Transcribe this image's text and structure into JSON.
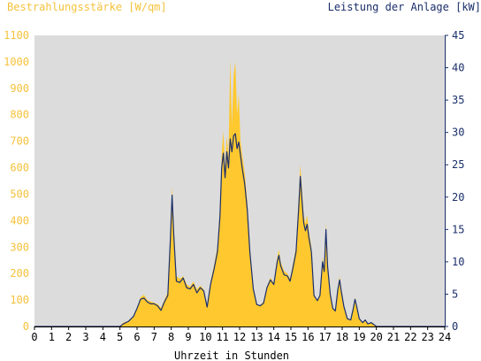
{
  "colors": {
    "plot_bg": "#dcdcdc",
    "irradiance_fill": "#ffc82e",
    "power_line": "#1a2f6b",
    "left_axis_text": "#f5c23c",
    "right_axis_text": "#1a2f6b",
    "right_axis_line": "#1a2f6b",
    "bottom_axis_line": "#000000"
  },
  "chart_data": {
    "type": "area",
    "title": "",
    "ylabel_left": "Bestrahlungsstärke [W/qm]",
    "ylabel_right": "Leistung der Anlage [kW]",
    "xlabel": "Uhrzeit in Stunden",
    "xlim": [
      0,
      24
    ],
    "ylim_left": [
      0,
      1100
    ],
    "ylim_right": [
      0,
      45
    ],
    "x_ticks": [
      "0",
      "1",
      "2",
      "3",
      "4",
      "5",
      "6",
      "7",
      "8",
      "9",
      "10",
      "11",
      "12",
      "13",
      "14",
      "15",
      "16",
      "17",
      "18",
      "19",
      "20",
      "21",
      "22",
      "23",
      "24"
    ],
    "y_ticks_left": [
      "0",
      "100",
      "200",
      "300",
      "400",
      "500",
      "600",
      "700",
      "800",
      "900",
      "1000",
      "1100"
    ],
    "y_ticks_right": [
      "0",
      "5",
      "10",
      "15",
      "20",
      "25",
      "30",
      "35",
      "40",
      "45"
    ],
    "grid": false,
    "series": [
      {
        "name": "Bestrahlungsstärke [W/qm]",
        "axis": "left",
        "style": "filled-area",
        "points": [
          [
            0,
            0
          ],
          [
            5.0,
            0
          ],
          [
            5.2,
            15
          ],
          [
            5.5,
            20
          ],
          [
            5.8,
            40
          ],
          [
            6.0,
            70
          ],
          [
            6.2,
            110
          ],
          [
            6.4,
            120
          ],
          [
            6.6,
            100
          ],
          [
            6.8,
            95
          ],
          [
            7.0,
            90
          ],
          [
            7.2,
            85
          ],
          [
            7.4,
            70
          ],
          [
            7.6,
            100
          ],
          [
            7.8,
            130
          ],
          [
            7.95,
            350
          ],
          [
            8.05,
            530
          ],
          [
            8.15,
            380
          ],
          [
            8.3,
            190
          ],
          [
            8.5,
            180
          ],
          [
            8.7,
            190
          ],
          [
            8.9,
            160
          ],
          [
            9.1,
            150
          ],
          [
            9.3,
            170
          ],
          [
            9.5,
            140
          ],
          [
            9.7,
            155
          ],
          [
            9.9,
            140
          ],
          [
            10.1,
            75
          ],
          [
            10.3,
            170
          ],
          [
            10.5,
            230
          ],
          [
            10.7,
            300
          ],
          [
            10.85,
            450
          ],
          [
            10.95,
            650
          ],
          [
            11.05,
            740
          ],
          [
            11.15,
            600
          ],
          [
            11.25,
            720
          ],
          [
            11.35,
            640
          ],
          [
            11.45,
            1010
          ],
          [
            11.55,
            760
          ],
          [
            11.65,
            950
          ],
          [
            11.75,
            1000
          ],
          [
            11.85,
            800
          ],
          [
            11.95,
            880
          ],
          [
            12.05,
            700
          ],
          [
            12.15,
            650
          ],
          [
            12.3,
            580
          ],
          [
            12.45,
            470
          ],
          [
            12.6,
            300
          ],
          [
            12.8,
            150
          ],
          [
            13.0,
            85
          ],
          [
            13.2,
            80
          ],
          [
            13.4,
            95
          ],
          [
            13.6,
            150
          ],
          [
            13.8,
            185
          ],
          [
            14.0,
            165
          ],
          [
            14.2,
            260
          ],
          [
            14.3,
            290
          ],
          [
            14.4,
            245
          ],
          [
            14.6,
            210
          ],
          [
            14.8,
            200
          ],
          [
            14.95,
            180
          ],
          [
            15.1,
            230
          ],
          [
            15.3,
            300
          ],
          [
            15.45,
            480
          ],
          [
            15.55,
            610
          ],
          [
            15.65,
            520
          ],
          [
            15.75,
            420
          ],
          [
            15.85,
            390
          ],
          [
            15.95,
            420
          ],
          [
            16.05,
            360
          ],
          [
            16.2,
            300
          ],
          [
            16.35,
            120
          ],
          [
            16.55,
            100
          ],
          [
            16.7,
            120
          ],
          [
            16.85,
            260
          ],
          [
            16.95,
            220
          ],
          [
            17.05,
            390
          ],
          [
            17.15,
            240
          ],
          [
            17.3,
            130
          ],
          [
            17.45,
            70
          ],
          [
            17.6,
            60
          ],
          [
            17.75,
            150
          ],
          [
            17.85,
            190
          ],
          [
            17.95,
            140
          ],
          [
            18.1,
            80
          ],
          [
            18.3,
            30
          ],
          [
            18.5,
            25
          ],
          [
            18.65,
            70
          ],
          [
            18.75,
            110
          ],
          [
            18.85,
            80
          ],
          [
            19.0,
            30
          ],
          [
            19.2,
            15
          ],
          [
            19.35,
            25
          ],
          [
            19.5,
            10
          ],
          [
            19.7,
            15
          ],
          [
            19.9,
            5
          ],
          [
            20.0,
            0
          ],
          [
            24,
            0
          ]
        ]
      },
      {
        "name": "Leistung der Anlage [kW]",
        "axis": "right",
        "style": "line",
        "points": [
          [
            0,
            0
          ],
          [
            5.0,
            0
          ],
          [
            5.2,
            0.4
          ],
          [
            5.5,
            0.8
          ],
          [
            5.8,
            1.6
          ],
          [
            6.0,
            2.8
          ],
          [
            6.2,
            4.2
          ],
          [
            6.4,
            4.4
          ],
          [
            6.6,
            3.8
          ],
          [
            6.8,
            3.5
          ],
          [
            7.0,
            3.5
          ],
          [
            7.2,
            3.2
          ],
          [
            7.4,
            2.5
          ],
          [
            7.6,
            3.8
          ],
          [
            7.8,
            4.8
          ],
          [
            7.95,
            13.5
          ],
          [
            8.05,
            20.3
          ],
          [
            8.15,
            14.0
          ],
          [
            8.3,
            7.0
          ],
          [
            8.5,
            6.8
          ],
          [
            8.7,
            7.5
          ],
          [
            8.9,
            6.0
          ],
          [
            9.1,
            5.8
          ],
          [
            9.3,
            6.5
          ],
          [
            9.5,
            5.2
          ],
          [
            9.7,
            6.0
          ],
          [
            9.9,
            5.5
          ],
          [
            10.1,
            3.0
          ],
          [
            10.3,
            6.5
          ],
          [
            10.5,
            8.8
          ],
          [
            10.7,
            11.5
          ],
          [
            10.85,
            17.0
          ],
          [
            10.95,
            24.5
          ],
          [
            11.05,
            26.8
          ],
          [
            11.15,
            23.0
          ],
          [
            11.25,
            27.0
          ],
          [
            11.35,
            24.5
          ],
          [
            11.45,
            29.0
          ],
          [
            11.55,
            27.0
          ],
          [
            11.65,
            29.5
          ],
          [
            11.75,
            29.8
          ],
          [
            11.85,
            27.5
          ],
          [
            11.95,
            28.5
          ],
          [
            12.05,
            26.5
          ],
          [
            12.15,
            24.5
          ],
          [
            12.3,
            22.0
          ],
          [
            12.45,
            18.0
          ],
          [
            12.6,
            11.5
          ],
          [
            12.8,
            5.8
          ],
          [
            13.0,
            3.4
          ],
          [
            13.2,
            3.2
          ],
          [
            13.4,
            3.6
          ],
          [
            13.6,
            6.0
          ],
          [
            13.8,
            7.2
          ],
          [
            14.0,
            6.5
          ],
          [
            14.2,
            10.0
          ],
          [
            14.3,
            11.0
          ],
          [
            14.4,
            9.4
          ],
          [
            14.6,
            8.0
          ],
          [
            14.8,
            7.8
          ],
          [
            14.95,
            7.0
          ],
          [
            15.1,
            8.8
          ],
          [
            15.3,
            11.5
          ],
          [
            15.45,
            18.0
          ],
          [
            15.55,
            23.2
          ],
          [
            15.65,
            19.5
          ],
          [
            15.75,
            16.0
          ],
          [
            15.85,
            14.8
          ],
          [
            15.95,
            15.8
          ],
          [
            16.05,
            13.8
          ],
          [
            16.2,
            11.5
          ],
          [
            16.35,
            4.8
          ],
          [
            16.55,
            4.0
          ],
          [
            16.7,
            4.8
          ],
          [
            16.85,
            10.0
          ],
          [
            16.95,
            8.5
          ],
          [
            17.05,
            15.0
          ],
          [
            17.15,
            9.2
          ],
          [
            17.3,
            5.0
          ],
          [
            17.45,
            2.8
          ],
          [
            17.6,
            2.4
          ],
          [
            17.75,
            5.8
          ],
          [
            17.85,
            7.2
          ],
          [
            17.95,
            5.4
          ],
          [
            18.1,
            3.1
          ],
          [
            18.3,
            1.2
          ],
          [
            18.5,
            1.0
          ],
          [
            18.65,
            2.8
          ],
          [
            18.75,
            4.2
          ],
          [
            18.85,
            3.1
          ],
          [
            19.0,
            1.2
          ],
          [
            19.2,
            0.6
          ],
          [
            19.35,
            1.0
          ],
          [
            19.5,
            0.4
          ],
          [
            19.7,
            0.6
          ],
          [
            19.9,
            0.2
          ],
          [
            20.0,
            0
          ],
          [
            24,
            0
          ]
        ]
      }
    ]
  }
}
